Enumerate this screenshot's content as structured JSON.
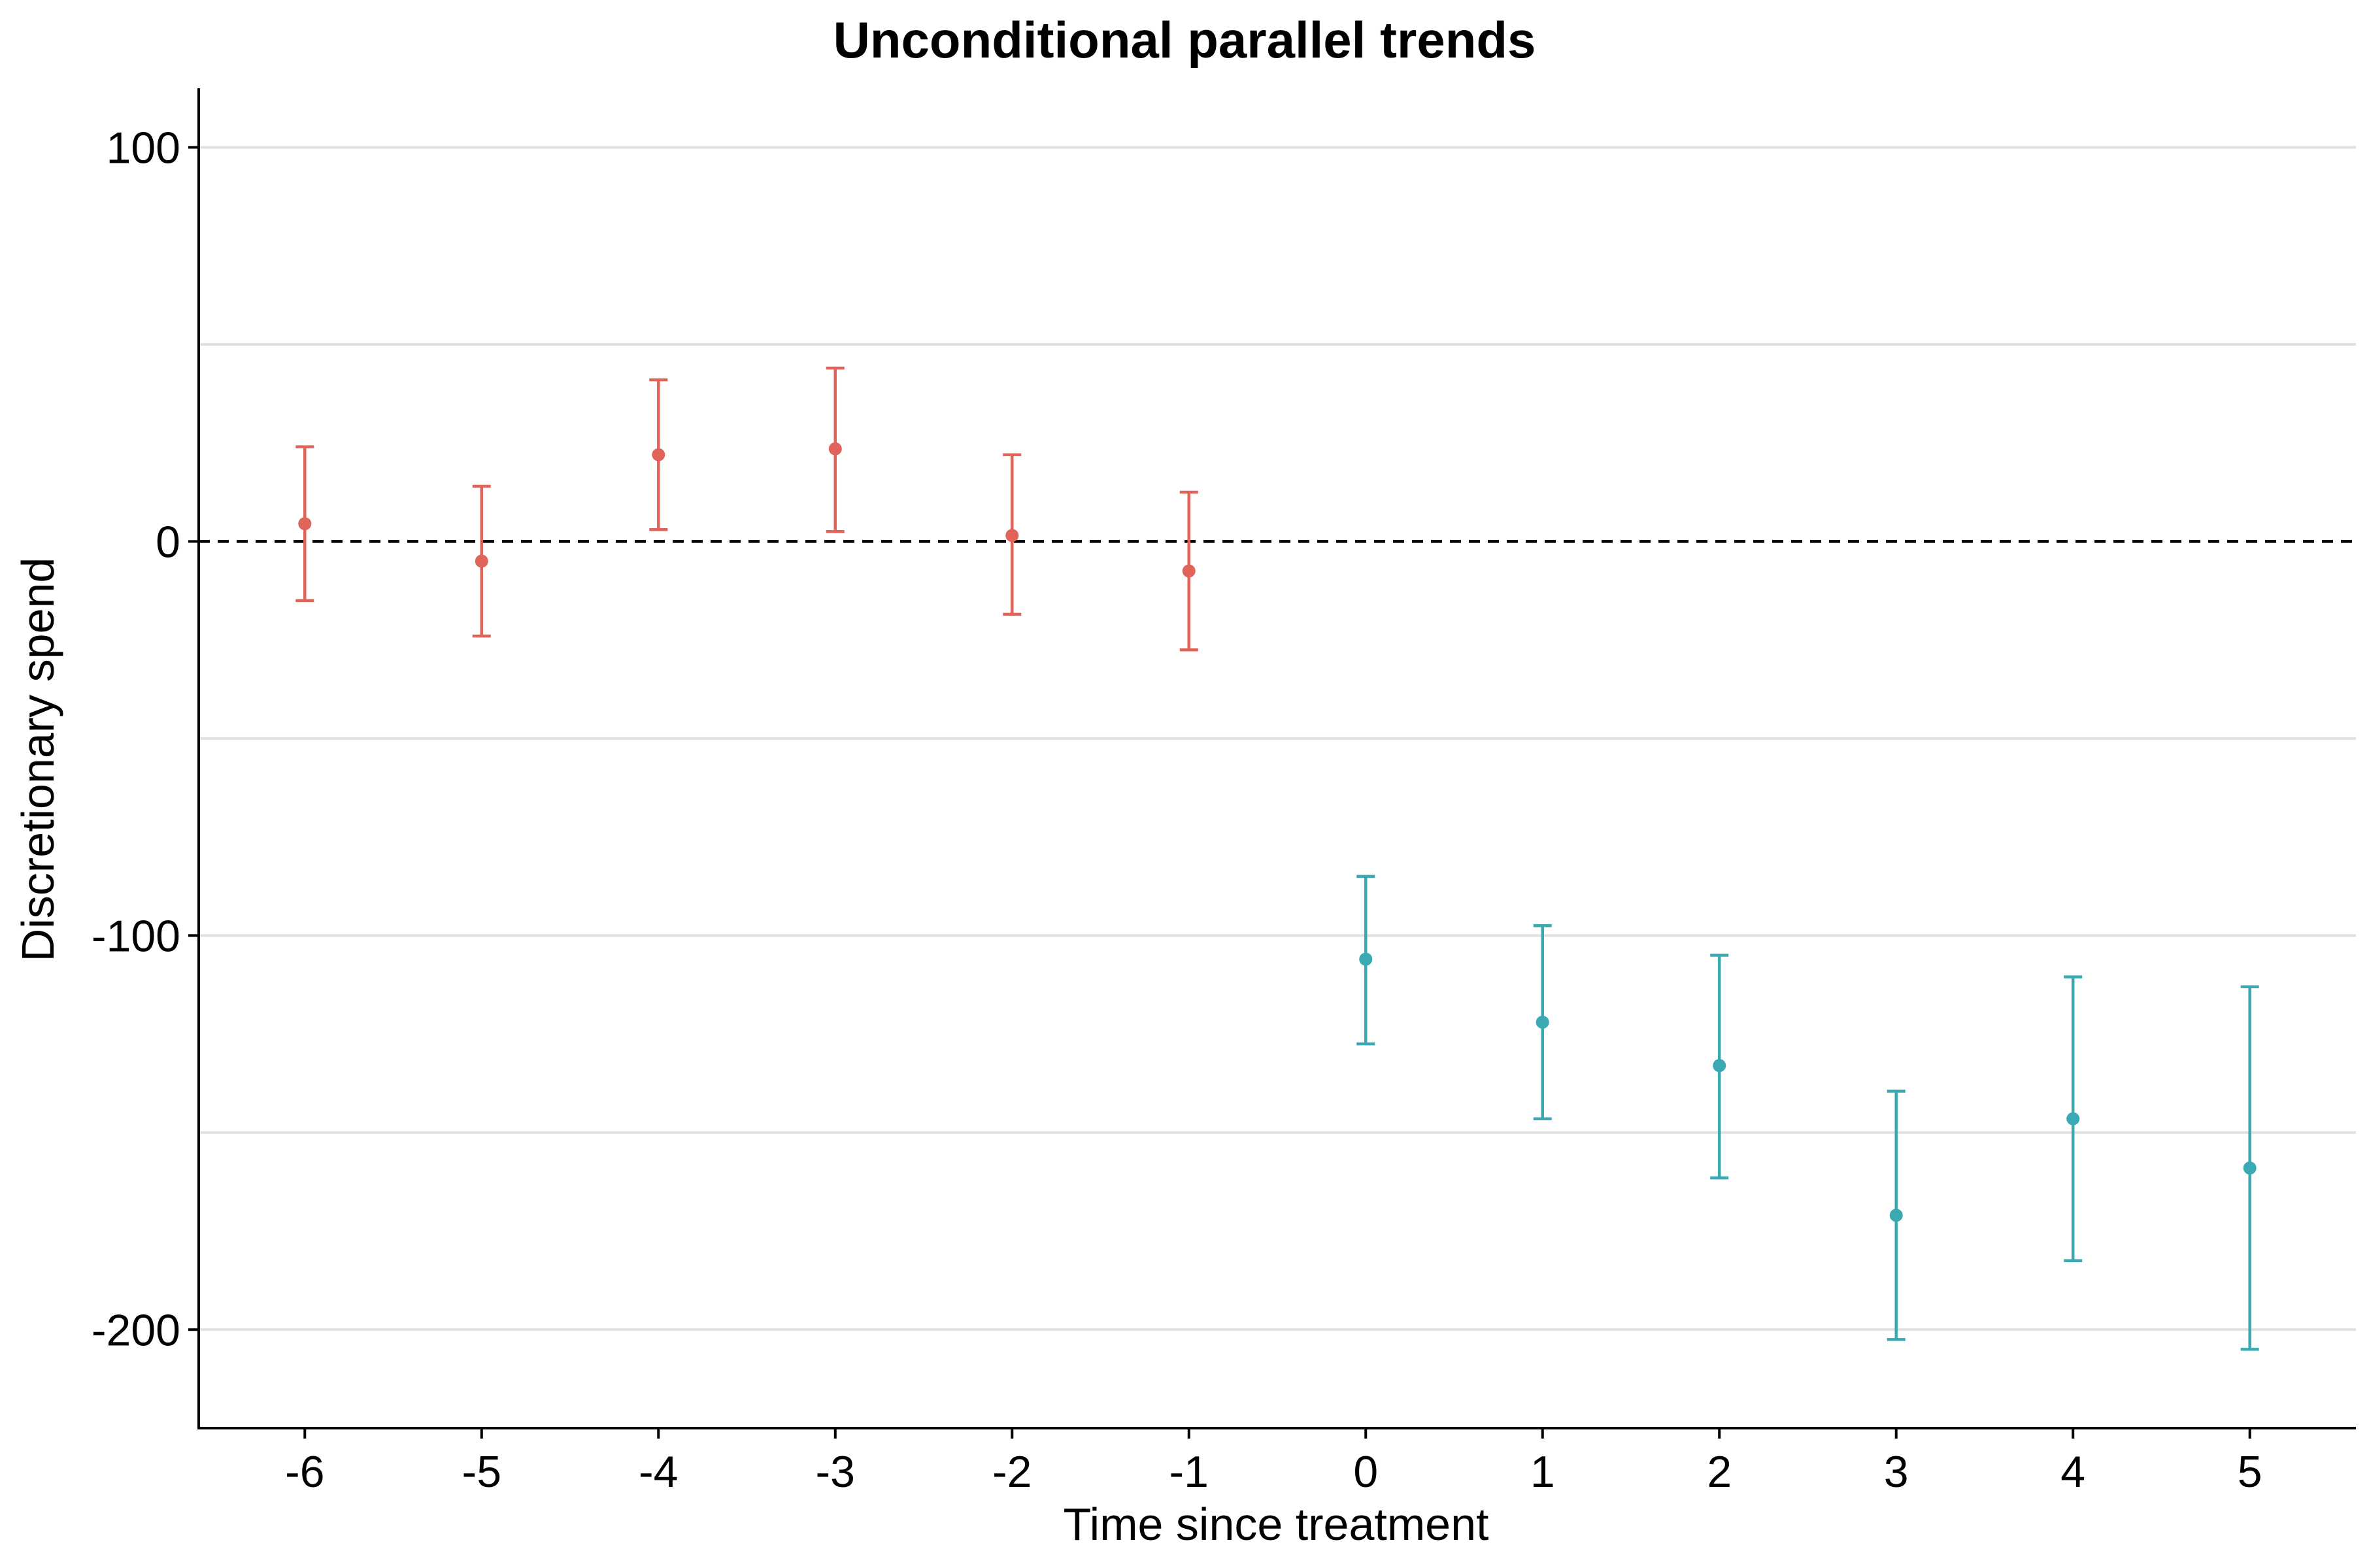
{
  "chart_data": {
    "type": "scatter",
    "title": "Unconditional parallel trends",
    "xlabel": "Time since treatment",
    "ylabel": "Discretionary spend",
    "x_ticks": [
      -6,
      -5,
      -4,
      -3,
      -2,
      -1,
      0,
      1,
      2,
      3,
      4,
      5
    ],
    "x_tick_labels": [
      "-6",
      "-5",
      "-4",
      "-3",
      "-2",
      "-1",
      "0",
      "1",
      "2",
      "3",
      "4",
      "5"
    ],
    "y_ticks": [
      100,
      0,
      -100,
      -200
    ],
    "y_tick_labels": [
      "100",
      "0",
      "-100",
      "-200"
    ],
    "y_minor_gridlines": [
      50,
      -50,
      -150
    ],
    "xlim": [
      -6.6,
      5.6
    ],
    "ylim": [
      -225,
      115
    ],
    "grid": "horizontal",
    "reference_line": {
      "y": 0,
      "style": "dashed",
      "color": "#000000"
    },
    "legend": "none",
    "colors": {
      "pre": "#E0645A",
      "post": "#3AA9B2",
      "grid": "#E0E0E0",
      "axis": "#000000"
    },
    "series": [
      {
        "color": "#E0645A",
        "points": [
          {
            "x": -6,
            "y": 4.5,
            "lo": -15,
            "hi": 24
          },
          {
            "x": -5,
            "y": -5,
            "lo": -24,
            "hi": 14
          },
          {
            "x": -4,
            "y": 22,
            "lo": 3,
            "hi": 41
          },
          {
            "x": -3,
            "y": 23.5,
            "lo": 2.5,
            "hi": 44
          },
          {
            "x": -2,
            "y": 1.5,
            "lo": -18.5,
            "hi": 22
          },
          {
            "x": -1,
            "y": -7.5,
            "lo": -27.5,
            "hi": 12.5
          }
        ]
      },
      {
        "color": "#3AA9B2",
        "points": [
          {
            "x": 0,
            "y": -106,
            "lo": -127.5,
            "hi": -85
          },
          {
            "x": 1,
            "y": -122,
            "lo": -146.5,
            "hi": -97.5
          },
          {
            "x": 2,
            "y": -133,
            "lo": -161.5,
            "hi": -105
          },
          {
            "x": 3,
            "y": -171,
            "lo": -202.5,
            "hi": -139.5
          },
          {
            "x": 4,
            "y": -146.5,
            "lo": -182.5,
            "hi": -110.5
          },
          {
            "x": 5,
            "y": -159,
            "lo": -205,
            "hi": -113
          }
        ]
      }
    ]
  }
}
